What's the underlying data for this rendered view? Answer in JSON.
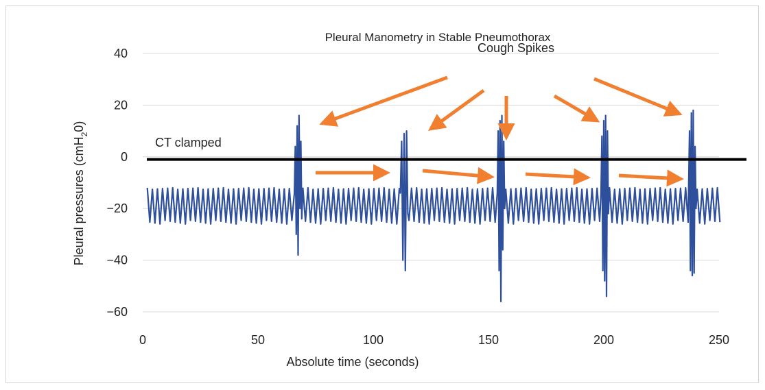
{
  "chart_data": {
    "type": "line",
    "title": "Pleural Manometry in Stable Pneumothorax",
    "xlabel": "Absolute time (seconds)",
    "ylabel": "Pleural pressures (cmH20)",
    "xlim": [
      0,
      250
    ],
    "ylim": [
      -60,
      40
    ],
    "x_ticks": [
      "0",
      "50",
      "100",
      "150",
      "200",
      "250"
    ],
    "y_ticks": [
      "40",
      "20",
      "0",
      "−20",
      "−40",
      "−60"
    ],
    "grid": "horizontal",
    "legend": "none",
    "series": [
      {
        "color": "#2e4f9c",
        "baseline": {
          "high": -12,
          "low": -26,
          "period_seconds": 2.2,
          "start": 2,
          "end": 251
        },
        "spikes": [
          {
            "x": 67,
            "values": [
              -14,
              4,
              -30,
              12,
              -38,
              16,
              -20,
              6,
              -24
            ]
          },
          {
            "x": 113,
            "values": [
              -14,
              6,
              -40,
              9,
              -44,
              10,
              -22
            ]
          },
          {
            "x": 155,
            "values": [
              -14,
              10,
              -44,
              14,
              -56,
              16,
              -36,
              6,
              -20
            ]
          },
          {
            "x": 200,
            "values": [
              -14,
              8,
              -44,
              14,
              -48,
              16,
              -54,
              10,
              -22
            ]
          },
          {
            "x": 238,
            "values": [
              -14,
              10,
              -44,
              17,
              -46,
              18,
              -45,
              4,
              -20
            ]
          }
        ]
      }
    ],
    "reference_line": {
      "y": -1,
      "color": "#000000"
    },
    "annotations": {
      "clamp_label": "CT clamped",
      "spike_label": "Cough Spikes",
      "arrow_color": "#f07f2f"
    }
  }
}
